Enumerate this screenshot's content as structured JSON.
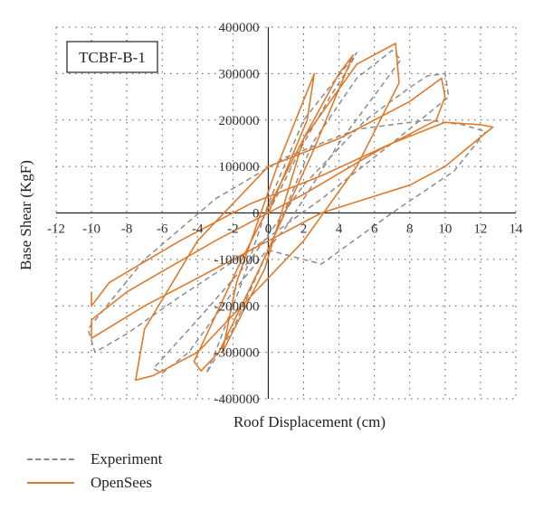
{
  "chart_data": {
    "type": "line",
    "annotation": "TCBF-B-1",
    "xlabel": "Roof Displacement (cm)",
    "ylabel": "Base Shear (KgF)",
    "xlim": [
      -12,
      14
    ],
    "ylim": [
      -400000,
      400000
    ],
    "x_ticks": [
      -12,
      -10,
      -8,
      -6,
      -4,
      -2,
      0,
      2,
      4,
      6,
      8,
      10,
      12,
      14
    ],
    "y_ticks": [
      400000,
      300000,
      200000,
      100000,
      0,
      -100000,
      -200000,
      -300000,
      -400000
    ],
    "grid": true,
    "legend_position": "bottom-left",
    "series": [
      {
        "name": "Experiment",
        "color": "#8c8c8c",
        "style": "dashed",
        "x": [
          0,
          2,
          3.5,
          4.5,
          5,
          2,
          0,
          -1.5,
          -3,
          -3.5,
          -2,
          0,
          2.5,
          5,
          7,
          7.5,
          4,
          1,
          -2,
          -4.5,
          -6,
          -6.5,
          -4,
          -1,
          2,
          5.5,
          8,
          9,
          10,
          10.2,
          7,
          3,
          -1,
          -5,
          -8,
          -9.8,
          -10.2,
          -7,
          -3,
          1,
          5,
          9,
          11,
          12.3,
          10.5,
          7,
          3,
          0
        ],
        "y": [
          0,
          150000,
          250000,
          310000,
          345000,
          200000,
          20000,
          -150000,
          -300000,
          -345000,
          -250000,
          -80000,
          150000,
          290000,
          350000,
          330000,
          150000,
          -30000,
          -170000,
          -300000,
          -345000,
          -335000,
          -230000,
          -100000,
          60000,
          200000,
          270000,
          295000,
          300000,
          250000,
          150000,
          30000,
          -80000,
          -180000,
          -260000,
          -300000,
          -250000,
          -100000,
          30000,
          120000,
          180000,
          200000,
          190000,
          175000,
          90000,
          0,
          -110000,
          -80000
        ]
      },
      {
        "name": "OpenSees",
        "color": "#e07a2a",
        "style": "solid",
        "x": [
          0,
          2.2,
          2.6,
          0.5,
          -1.8,
          -2.6,
          -0.2,
          2,
          4,
          4.8,
          2.5,
          -0.5,
          -2.8,
          -3.8,
          -4.2,
          -1.5,
          2,
          5,
          7.2,
          7.4,
          5,
          2,
          -1,
          -4,
          -6.5,
          -7.5,
          -7,
          -4,
          0,
          4,
          8,
          9.8,
          10,
          9.5,
          6,
          2,
          -3,
          -8,
          -10,
          -10,
          -7,
          -2,
          3,
          8,
          10,
          12.7,
          12,
          10,
          7,
          3,
          -1,
          -5,
          -9,
          -10,
          -10
        ],
        "y": [
          0,
          200000,
          300000,
          100000,
          -150000,
          -300000,
          -120000,
          160000,
          300000,
          340000,
          130000,
          -120000,
          -300000,
          -340000,
          -320000,
          -100000,
          160000,
          320000,
          365000,
          280000,
          100000,
          -60000,
          -180000,
          -300000,
          -350000,
          -360000,
          -250000,
          -60000,
          100000,
          160000,
          240000,
          290000,
          250000,
          200000,
          130000,
          40000,
          -60000,
          -170000,
          -230000,
          -270000,
          -200000,
          -100000,
          0,
          60000,
          100000,
          185000,
          190000,
          195000,
          150000,
          80000,
          20000,
          -60000,
          -150000,
          -200000,
          -170000
        ]
      }
    ]
  },
  "legend": {
    "experiment": "Experiment",
    "opensees": "OpenSees"
  }
}
